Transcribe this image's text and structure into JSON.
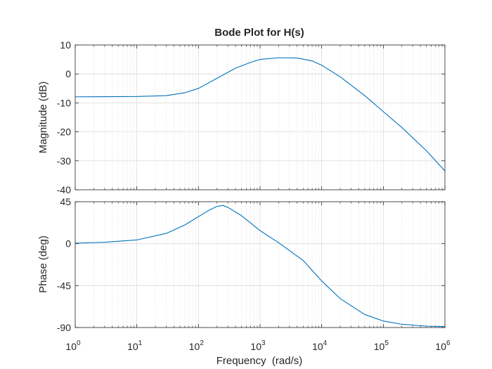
{
  "chart_data": [
    {
      "type": "line",
      "title": "Bode Plot for H(s)",
      "ylabel": "Magnitude (dB)",
      "xlabel": "",
      "xscale": "log",
      "xlim": [
        1,
        1000000
      ],
      "ylim": [
        -40,
        10
      ],
      "yticks": [
        "10",
        "0",
        "-10",
        "-20",
        "-30",
        "-40"
      ],
      "grid": true,
      "series_color": "#0072BD",
      "x": [
        1,
        10,
        30,
        60,
        100,
        200,
        400,
        700,
        1000,
        2000,
        4000,
        7000,
        10000,
        20000,
        50000,
        100000,
        200000,
        500000,
        1000000
      ],
      "y": [
        -7.9,
        -7.8,
        -7.5,
        -6.5,
        -5.0,
        -1.5,
        2.0,
        4.0,
        5.0,
        5.6,
        5.5,
        4.5,
        3.0,
        -1.0,
        -7.5,
        -13.0,
        -18.5,
        -26.5,
        -33.5
      ]
    },
    {
      "type": "line",
      "title": "",
      "ylabel": "Phase (deg)",
      "xlabel": "Frequency  (rad/s)",
      "xscale": "log",
      "xlim": [
        1,
        1000000
      ],
      "ylim": [
        -90,
        45
      ],
      "yticks": [
        "45",
        "0",
        "-45",
        "-90"
      ],
      "xtick_base": "10",
      "xtick_exponents": [
        "0",
        "1",
        "2",
        "3",
        "4",
        "5",
        "6"
      ],
      "grid": true,
      "series_color": "#0072BD",
      "x": [
        1,
        3,
        10,
        30,
        60,
        100,
        150,
        200,
        250,
        300,
        500,
        1000,
        2000,
        5000,
        10000,
        20000,
        50000,
        100000,
        200000,
        500000,
        1000000
      ],
      "y": [
        0.5,
        1.5,
        4,
        11,
        20,
        29,
        36,
        40,
        41,
        39,
        30,
        14,
        1,
        -18,
        -40,
        -59,
        -76,
        -83,
        -86.5,
        -88.5,
        -89
      ]
    }
  ]
}
